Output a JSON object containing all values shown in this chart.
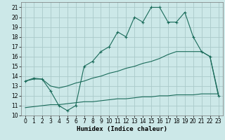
{
  "xlabel": "Humidex (Indice chaleur)",
  "bg_color": "#cce8e8",
  "grid_color": "#aacaca",
  "line_color": "#1a6b5a",
  "xlim": [
    -0.5,
    23.5
  ],
  "ylim": [
    10,
    21.5
  ],
  "yticks": [
    10,
    11,
    12,
    13,
    14,
    15,
    16,
    17,
    18,
    19,
    20,
    21
  ],
  "xticks": [
    0,
    1,
    2,
    3,
    4,
    5,
    6,
    7,
    8,
    9,
    10,
    11,
    12,
    13,
    14,
    15,
    16,
    17,
    18,
    19,
    20,
    21,
    22,
    23
  ],
  "line1_x": [
    0,
    1,
    2,
    3,
    4,
    5,
    6,
    7,
    8,
    9,
    10,
    11,
    12,
    13,
    14,
    15,
    16,
    17,
    18,
    19,
    20,
    21,
    22,
    23
  ],
  "line1_y": [
    13.5,
    13.8,
    13.7,
    12.5,
    11.0,
    10.5,
    11.0,
    15.0,
    15.5,
    16.5,
    17.0,
    18.5,
    18.0,
    20.0,
    19.5,
    21.0,
    21.0,
    19.5,
    19.5,
    20.5,
    18.0,
    16.5,
    16.0,
    12.0
  ],
  "line2_x": [
    0,
    1,
    2,
    3,
    4,
    5,
    6,
    7,
    8,
    9,
    10,
    11,
    12,
    13,
    14,
    15,
    16,
    17,
    18,
    19,
    20,
    21,
    22,
    23
  ],
  "line2_y": [
    13.5,
    13.7,
    13.7,
    13.0,
    12.8,
    13.0,
    13.3,
    13.5,
    13.8,
    14.0,
    14.3,
    14.5,
    14.8,
    15.0,
    15.3,
    15.5,
    15.8,
    16.2,
    16.5,
    16.5,
    16.5,
    16.5,
    16.0,
    12.2
  ],
  "line3_x": [
    0,
    1,
    2,
    3,
    4,
    5,
    6,
    7,
    8,
    9,
    10,
    11,
    12,
    13,
    14,
    15,
    16,
    17,
    18,
    19,
    20,
    21,
    22,
    23
  ],
  "line3_y": [
    10.8,
    10.9,
    11.0,
    11.1,
    11.1,
    11.2,
    11.3,
    11.4,
    11.4,
    11.5,
    11.6,
    11.7,
    11.7,
    11.8,
    11.9,
    11.9,
    12.0,
    12.0,
    12.1,
    12.1,
    12.1,
    12.2,
    12.2,
    12.2
  ],
  "tick_fontsize": 5.5,
  "xlabel_fontsize": 6.5
}
